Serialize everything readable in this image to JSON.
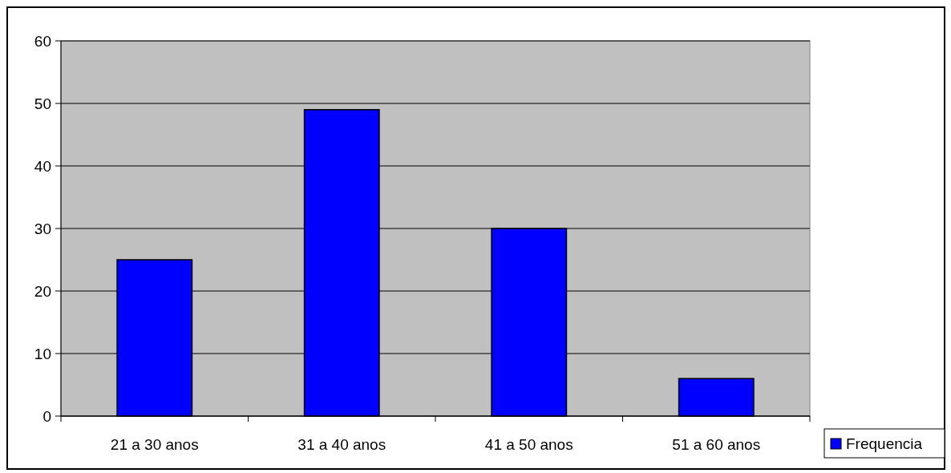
{
  "chart_data": {
    "type": "bar",
    "categories": [
      "21 a 30 anos",
      "31 a 40 anos",
      "41 a 50 anos",
      "51 a 60 anos"
    ],
    "series": [
      {
        "name": "Frequencia",
        "color": "#0000ff",
        "values": [
          25,
          49,
          30,
          6
        ]
      }
    ],
    "ylim": [
      0,
      60
    ],
    "yticks": [
      0,
      10,
      20,
      30,
      40,
      50,
      60
    ],
    "grid": "y",
    "legend": "bottom right"
  }
}
